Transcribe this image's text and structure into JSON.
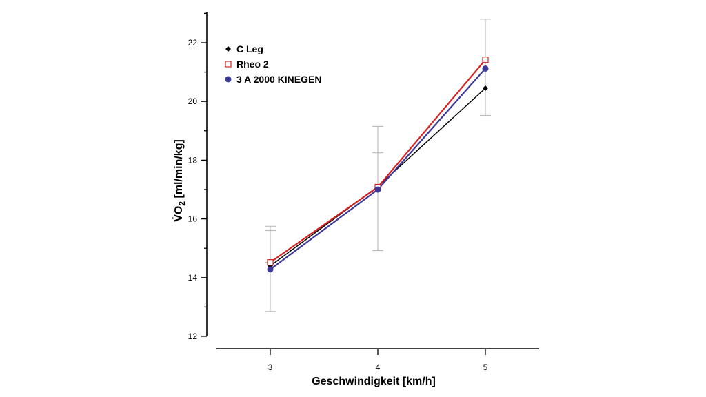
{
  "chart_data": {
    "type": "line",
    "title": "",
    "xlabel": "Geschwindigkeit [km/h]",
    "ylabel": {
      "symbol": "V̇O",
      "subscript": "2",
      "units": " [ml/min/kg]"
    },
    "x": [
      3,
      4,
      5
    ],
    "xlim": [
      2.5,
      5.5
    ],
    "ylim": [
      12,
      23
    ],
    "yticks": [
      12,
      14,
      16,
      18,
      20,
      22
    ],
    "legend_position": "top-left",
    "series": [
      {
        "name": "C Leg",
        "values": [
          14.4,
          17.1,
          20.45
        ],
        "color": "#000000",
        "marker": "diamond",
        "errors": [
          {
            "x": 3,
            "low": 12.85,
            "high": 15.75
          },
          {
            "x": 4,
            "low": 14.92,
            "high": 19.15
          },
          {
            "x": 5,
            "low": 19.52,
            "high": 22.8
          }
        ]
      },
      {
        "name": "Rheo 2",
        "values": [
          14.52,
          17.08,
          21.42
        ],
        "color": "#d62020",
        "marker": "open-square",
        "errors": [
          {
            "x": 3,
            "low": 14.52,
            "high": 15.6
          },
          {
            "x": 4,
            "low": 17.08,
            "high": 18.25
          }
        ]
      },
      {
        "name": "3 A 2000 KINEGEN",
        "values": [
          14.28,
          17.0,
          21.12
        ],
        "color": "#3c3a96",
        "marker": "circle",
        "errors": []
      }
    ],
    "errorbar_color": "#b3b3b3"
  }
}
